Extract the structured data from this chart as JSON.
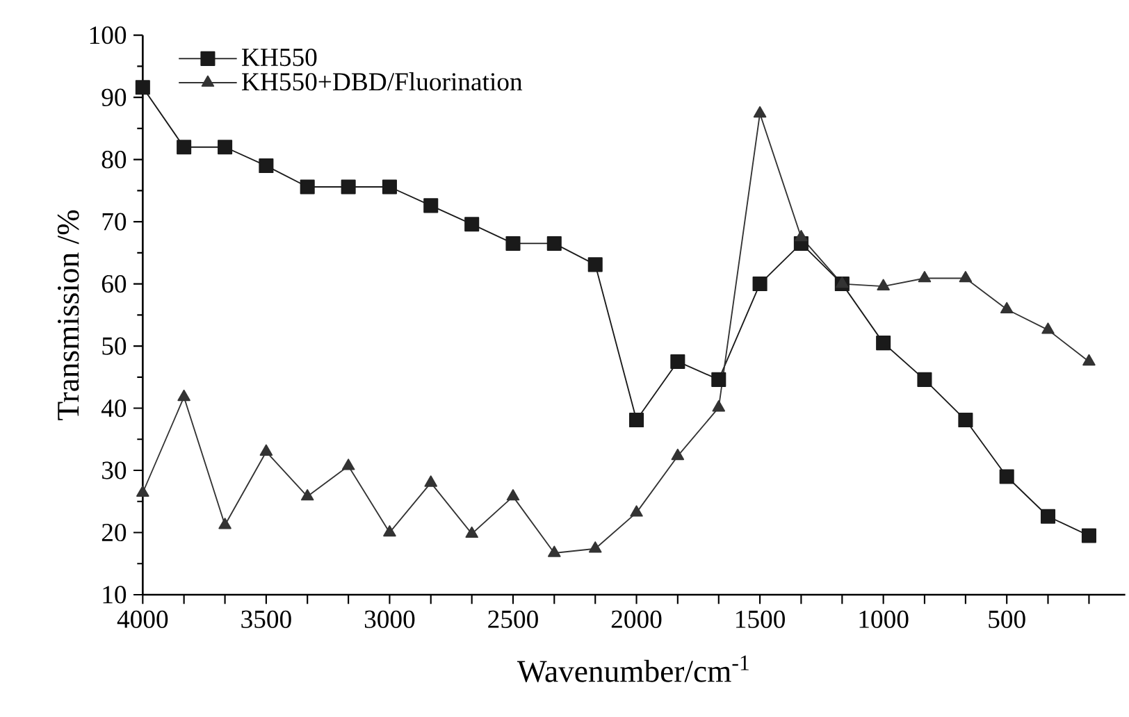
{
  "chart_data": {
    "type": "line",
    "xlabel": "Wavenumber/cm$^{-1}$",
    "ylabel": "Transmission /%",
    "x": [
      4000,
      3833,
      3667,
      3500,
      3333,
      3167,
      3000,
      2833,
      2667,
      2500,
      2333,
      2167,
      2000,
      1833,
      1667,
      1500,
      1333,
      1167,
      1000,
      833,
      667,
      500,
      333,
      167
    ],
    "series": [
      {
        "name": "KH550",
        "color": "#1a1a1a",
        "marker": "square",
        "values": [
          91.6,
          82,
          82,
          79,
          75.6,
          75.6,
          75.6,
          72.6,
          69.6,
          66.5,
          66.5,
          63.1,
          38.1,
          47.5,
          44.6,
          60,
          66.5,
          60,
          50.5,
          44.6,
          38.1,
          29,
          22.6,
          19.5
        ]
      },
      {
        "name": "KH550+DBD/Fluorination",
        "color": "#333333",
        "marker": "triangle",
        "values": [
          26.4,
          41.8,
          21.2,
          33,
          25.8,
          30.7,
          20,
          28,
          19.8,
          25.8,
          16.7,
          17.4,
          23.2,
          32.3,
          40.1,
          87.4,
          67.5,
          60,
          59.6,
          60.9,
          60.9,
          55.9,
          52.6,
          47.5
        ]
      }
    ],
    "xlim": [
      4000,
      20
    ],
    "ylim": [
      10,
      100
    ],
    "xticks": [
      4000,
      {
        "value": 3833,
        "label": null
      },
      {
        "value": 3667,
        "label": null
      },
      3500,
      {
        "value": 3333,
        "label": null
      },
      {
        "value": 3167,
        "label": null
      },
      3000,
      {
        "value": 2833,
        "label": null
      },
      {
        "value": 2667,
        "label": null
      },
      2500,
      {
        "value": 2333,
        "label": null
      },
      {
        "value": 2167,
        "label": null
      },
      2000,
      {
        "value": 1833,
        "label": null
      },
      {
        "value": 1667,
        "label": null
      },
      1500,
      {
        "value": 1333,
        "label": null
      },
      {
        "value": 1167,
        "label": null
      },
      1000,
      {
        "value": 833,
        "label": null
      },
      {
        "value": 667,
        "label": null
      },
      500,
      {
        "value": 333,
        "label": null
      },
      {
        "value": 167,
        "label": null
      }
    ],
    "yticks": [
      10,
      20,
      30,
      40,
      50,
      60,
      70,
      80,
      90,
      100
    ],
    "legend": "top left",
    "grid": false,
    "line_style": "solid"
  }
}
